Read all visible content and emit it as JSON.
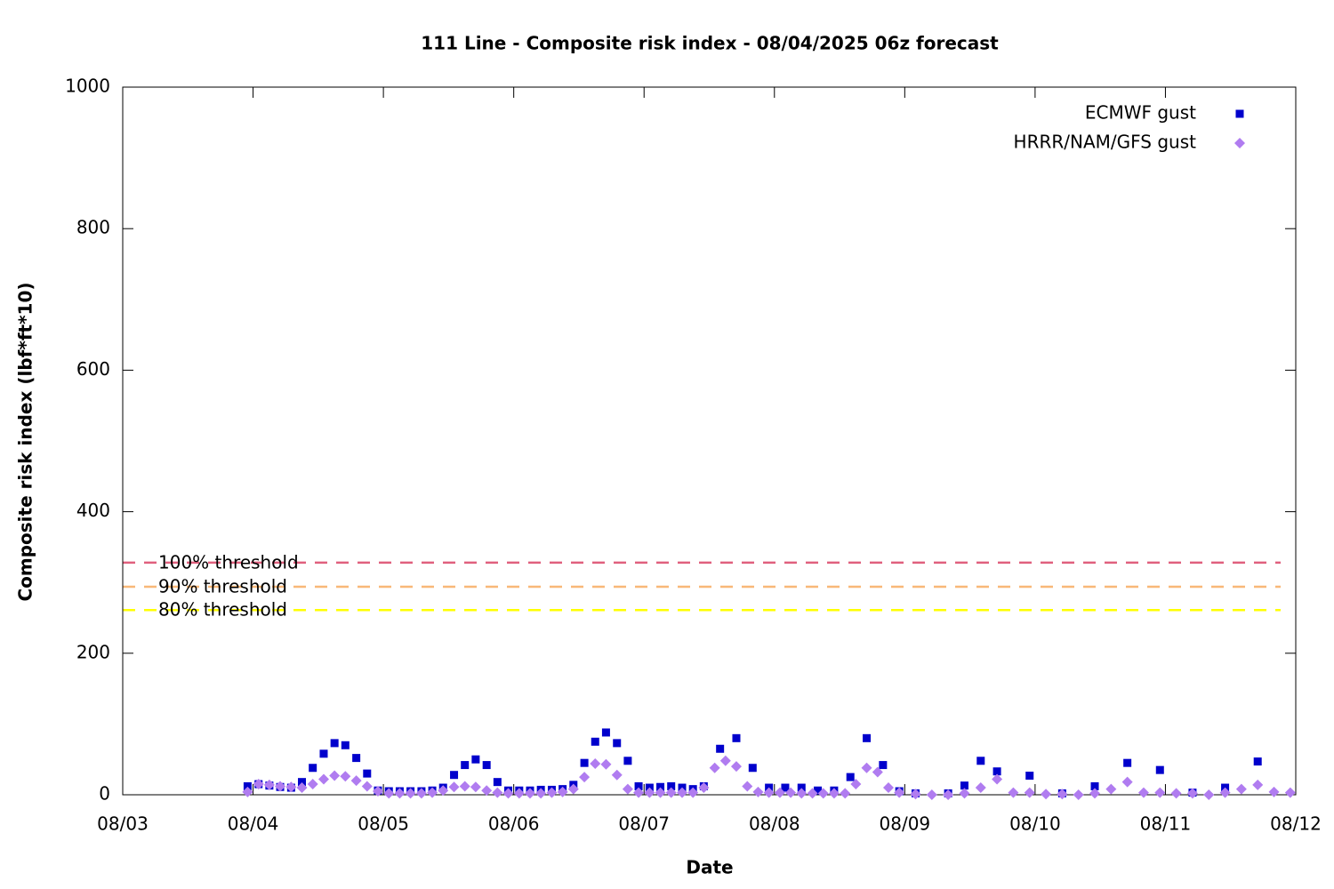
{
  "chart_data": {
    "type": "scatter",
    "title": "111 Line - Composite risk index - 08/04/2025 06z forecast",
    "x_label": "Date",
    "y_label": "Composite risk index (lbf*ft*10)",
    "xlim": [
      3,
      12
    ],
    "xticks": [
      {
        "value": 3,
        "label": "08/03"
      },
      {
        "value": 4,
        "label": "08/04"
      },
      {
        "value": 5,
        "label": "08/05"
      },
      {
        "value": 6,
        "label": "08/06"
      },
      {
        "value": 7,
        "label": "08/07"
      },
      {
        "value": 8,
        "label": "08/08"
      },
      {
        "value": 9,
        "label": "08/09"
      },
      {
        "value": 10,
        "label": "08/10"
      },
      {
        "value": 11,
        "label": "08/11"
      },
      {
        "value": 12,
        "label": "08/12"
      }
    ],
    "ylim": [
      0,
      1000
    ],
    "yticks": [
      0,
      200,
      400,
      600,
      800,
      1000
    ],
    "legend": "top-right",
    "thresholds": [
      {
        "label": "100% threshold",
        "value": 328,
        "color": "#e0607e"
      },
      {
        "label": "90% threshold",
        "value": 294,
        "color": "#f8b878"
      },
      {
        "label": "80% threshold",
        "value": 261,
        "color": "#ffff00"
      }
    ],
    "series": [
      {
        "name": "ECMWF gust",
        "color": "#0000cc",
        "marker": "square",
        "x": [
          3.958,
          4.042,
          4.125,
          4.208,
          4.292,
          4.375,
          4.458,
          4.542,
          4.625,
          4.708,
          4.792,
          4.875,
          4.958,
          5.042,
          5.125,
          5.208,
          5.292,
          5.375,
          5.458,
          5.542,
          5.625,
          5.708,
          5.792,
          5.875,
          5.958,
          6.042,
          6.125,
          6.208,
          6.292,
          6.375,
          6.458,
          6.542,
          6.625,
          6.708,
          6.792,
          6.875,
          6.958,
          7.042,
          7.125,
          7.208,
          7.292,
          7.375,
          7.458,
          7.583,
          7.708,
          7.833,
          7.958,
          8.083,
          8.208,
          8.333,
          8.458,
          8.583,
          8.708,
          8.833,
          8.958,
          9.083,
          9.333,
          9.458,
          9.583,
          9.708,
          9.958,
          10.208,
          10.458,
          10.708,
          10.958,
          11.208,
          11.458,
          11.708
        ],
        "values": [
          12,
          15,
          13,
          11,
          10,
          18,
          38,
          58,
          73,
          70,
          52,
          30,
          6,
          5,
          5,
          5,
          5,
          6,
          10,
          28,
          42,
          50,
          42,
          18,
          6,
          6,
          6,
          7,
          7,
          8,
          14,
          45,
          75,
          88,
          73,
          48,
          12,
          10,
          11,
          12,
          10,
          8,
          12,
          65,
          80,
          38,
          10,
          10,
          10,
          6,
          6,
          25,
          80,
          42,
          5,
          2,
          2,
          13,
          48,
          33,
          27,
          2,
          12,
          45,
          35,
          3,
          10,
          47
        ]
      },
      {
        "name": "HRRR/NAM/GFS gust",
        "color": "#b07cf0",
        "marker": "diamond",
        "x": [
          3.958,
          4.042,
          4.125,
          4.208,
          4.292,
          4.375,
          4.458,
          4.542,
          4.625,
          4.708,
          4.792,
          4.875,
          4.958,
          5.042,
          5.125,
          5.208,
          5.292,
          5.375,
          5.458,
          5.542,
          5.625,
          5.708,
          5.792,
          5.875,
          5.958,
          6.042,
          6.125,
          6.208,
          6.292,
          6.375,
          6.458,
          6.542,
          6.625,
          6.708,
          6.792,
          6.875,
          6.958,
          7.042,
          7.125,
          7.208,
          7.292,
          7.375,
          7.458,
          7.542,
          7.625,
          7.708,
          7.792,
          7.875,
          7.958,
          8.042,
          8.125,
          8.208,
          8.292,
          8.375,
          8.458,
          8.542,
          8.625,
          8.708,
          8.792,
          8.875,
          8.958,
          9.083,
          9.208,
          9.333,
          9.458,
          9.583,
          9.708,
          9.833,
          9.958,
          10.083,
          10.208,
          10.333,
          10.458,
          10.583,
          10.708,
          10.833,
          10.958,
          11.083,
          11.208,
          11.333,
          11.458,
          11.583,
          11.708,
          11.833,
          11.958
        ],
        "values": [
          4,
          15,
          14,
          12,
          11,
          10,
          15,
          22,
          27,
          26,
          20,
          12,
          5,
          2,
          2,
          2,
          2,
          3,
          6,
          11,
          12,
          11,
          6,
          3,
          2,
          2,
          2,
          2,
          3,
          4,
          8,
          25,
          44,
          43,
          28,
          8,
          3,
          3,
          3,
          3,
          3,
          3,
          10,
          38,
          48,
          40,
          12,
          4,
          3,
          3,
          3,
          2,
          2,
          2,
          2,
          2,
          15,
          38,
          32,
          10,
          3,
          1,
          0,
          0,
          2,
          10,
          22,
          3,
          3,
          1,
          1,
          0,
          2,
          8,
          18,
          3,
          3,
          2,
          2,
          0,
          3,
          8,
          14,
          4,
          3
        ]
      }
    ]
  }
}
